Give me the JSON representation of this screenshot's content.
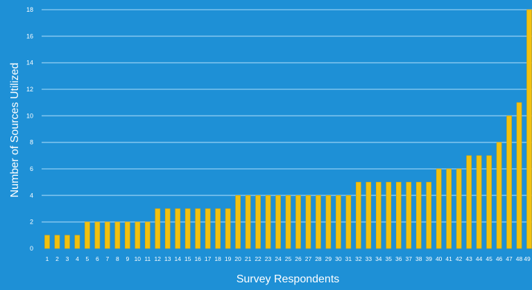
{
  "chart_data": {
    "type": "bar",
    "title": "",
    "xlabel": "Survey Respondents",
    "ylabel": "Number of Sources Utilized",
    "categories": [
      "1",
      "2",
      "3",
      "4",
      "5",
      "6",
      "7",
      "8",
      "9",
      "10",
      "11",
      "12",
      "13",
      "14",
      "15",
      "16",
      "17",
      "18",
      "19",
      "20",
      "21",
      "22",
      "23",
      "24",
      "25",
      "26",
      "27",
      "28",
      "29",
      "30",
      "31",
      "32",
      "33",
      "34",
      "35",
      "36",
      "37",
      "38",
      "39",
      "40",
      "41",
      "42",
      "43",
      "44",
      "45",
      "46",
      "47",
      "48",
      "49"
    ],
    "values": [
      1,
      1,
      1,
      1,
      2,
      2,
      2,
      2,
      2,
      2,
      2,
      3,
      3,
      3,
      3,
      3,
      3,
      3,
      3,
      4,
      4,
      4,
      4,
      4,
      4,
      4,
      4,
      4,
      4,
      4,
      4,
      5,
      5,
      5,
      5,
      5,
      5,
      5,
      5,
      6,
      6,
      6,
      7,
      7,
      7,
      8,
      10,
      11,
      18
    ],
    "ylim": [
      0,
      18
    ],
    "yticks": [
      0,
      2,
      4,
      6,
      8,
      10,
      12,
      14,
      16,
      18
    ],
    "grid": true,
    "legend": "none",
    "colors": {
      "background": "#1e90d6",
      "bar": "#f2c10f",
      "gridline": "#7fc4ee",
      "text": "#ffffff"
    }
  }
}
